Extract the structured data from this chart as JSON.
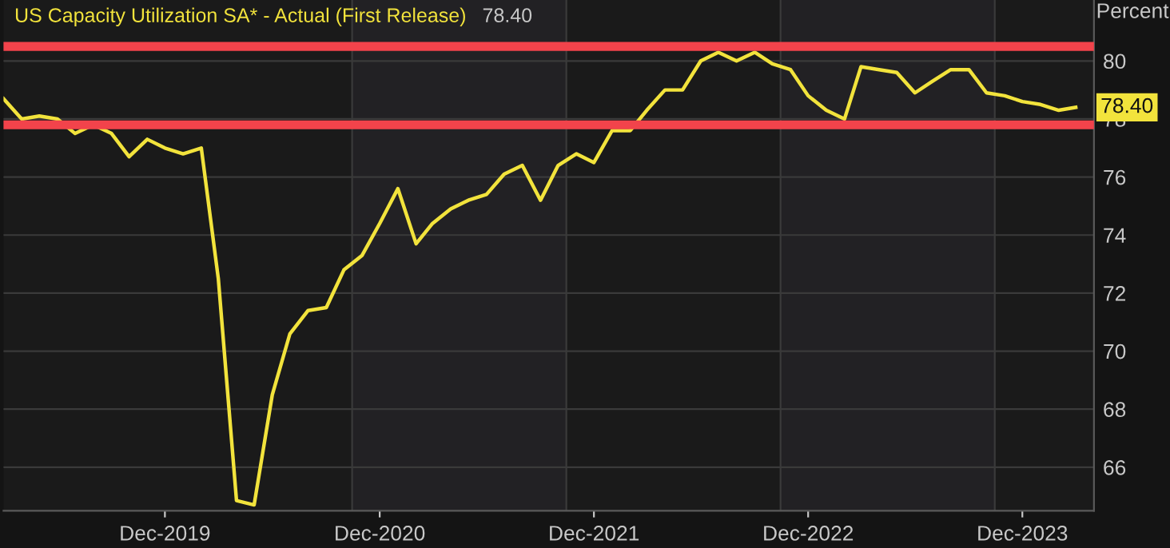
{
  "chart_data": {
    "type": "line",
    "ylabel": "Percent",
    "x": [
      "2019-03",
      "2019-04",
      "2019-05",
      "2019-06",
      "2019-07",
      "2019-08",
      "2019-09",
      "2019-10",
      "2019-11",
      "2019-12",
      "2020-01",
      "2020-02",
      "2020-03",
      "2020-04",
      "2020-05",
      "2020-06",
      "2020-07",
      "2020-08",
      "2020-09",
      "2020-10",
      "2020-11",
      "2020-12",
      "2021-01",
      "2021-02",
      "2021-03",
      "2021-04",
      "2021-05",
      "2021-06",
      "2021-07",
      "2021-08",
      "2021-09",
      "2021-10",
      "2021-11",
      "2021-12",
      "2022-01",
      "2022-02",
      "2022-03",
      "2022-04",
      "2022-05",
      "2022-06",
      "2022-07",
      "2022-08",
      "2022-09",
      "2022-10",
      "2022-11",
      "2022-12",
      "2023-01",
      "2023-02",
      "2023-03",
      "2023-04",
      "2023-05",
      "2023-06",
      "2023-07",
      "2023-08",
      "2023-09",
      "2023-10",
      "2023-11",
      "2023-12",
      "2024-01",
      "2024-02",
      "2024-03"
    ],
    "series": [
      {
        "name": "US Capacity Utilization SA* - Actual (First Release)",
        "color": "#f2e33c",
        "values": [
          78.7,
          78.0,
          78.1,
          78.0,
          77.5,
          77.8,
          77.5,
          76.7,
          77.3,
          77.0,
          76.8,
          77.0,
          72.5,
          64.85,
          64.7,
          68.5,
          70.6,
          71.4,
          71.5,
          72.8,
          73.3,
          74.4,
          75.6,
          73.7,
          74.4,
          74.9,
          75.2,
          75.4,
          76.1,
          76.4,
          75.2,
          76.4,
          76.8,
          76.5,
          77.6,
          77.6,
          78.3,
          79.0,
          79.0,
          80.0,
          80.3,
          80.0,
          80.3,
          79.9,
          79.7,
          78.8,
          78.3,
          78.0,
          79.8,
          79.7,
          79.6,
          78.9,
          79.3,
          79.7,
          79.7,
          78.9,
          78.8,
          78.6,
          78.5,
          78.3,
          78.4
        ]
      }
    ],
    "annotations": [
      "78.40",
      {
        "text": "78.40",
        "x": "2024-03",
        "y": 78.4
      }
    ],
    "xlim": [
      "2019-03",
      "2024-04"
    ],
    "xticks": [
      {
        "value": "2019-12",
        "label": "Dec-2019"
      },
      {
        "value": "2020-12",
        "label": "Dec-2020"
      },
      {
        "value": "2021-12",
        "label": "Dec-2021"
      },
      {
        "value": "2022-12",
        "label": "Dec-2022"
      },
      {
        "value": "2023-12",
        "label": "Dec-2023"
      }
    ],
    "ylim": [
      64.5,
      82.1
    ],
    "yticks": [
      66,
      68,
      70,
      72,
      74,
      76,
      78,
      80
    ],
    "ref_lines": [
      {
        "axis": "y",
        "value": 80.5,
        "color": "#f2434b"
      },
      {
        "axis": "y",
        "value": 77.8,
        "color": "#f2434b"
      }
    ],
    "bands": [
      {
        "axis": "x",
        "from": "2020-10-15",
        "to": "2021-10-15",
        "color": "#222124"
      },
      {
        "axis": "x",
        "from": "2022-10-15",
        "to": "2023-10-15",
        "color": "#222124"
      }
    ],
    "grid": "y",
    "marker": "none",
    "line_style": "solid"
  }
}
